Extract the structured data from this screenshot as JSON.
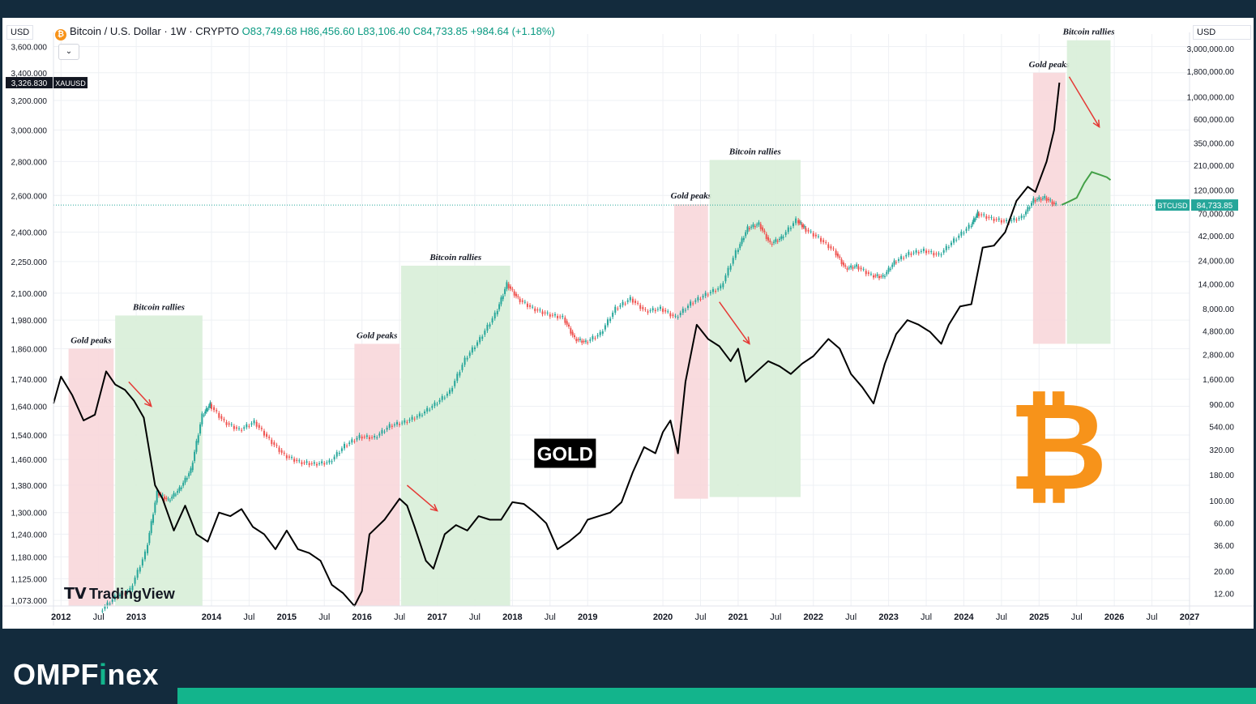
{
  "header": {
    "title": "Bitcoin / U.S. Dollar · 1W · CRYPTO",
    "open": "O83,749.68",
    "high": "H86,456.60",
    "low": "L83,106.40",
    "close": "C84,733.85",
    "change": "+984.64 (+1.18%)"
  },
  "left_currency": "USD",
  "right_currency": "USD",
  "dropdown_icon": "chevron-down-icon",
  "watermark": "TradingView",
  "brand": {
    "part1": "OMPF",
    "part2": "i",
    "part3": "nex"
  },
  "colors": {
    "background": "#ffffff",
    "gold_line": "#000000",
    "btc_up": "#26a69a",
    "btc_down": "#ef5350",
    "projection": "#43a047",
    "peak_zone": "#f8d7da",
    "rally_zone": "#d8eed8",
    "arrow": "#e53935",
    "btc_logo": "#f7931a",
    "brand_accent": "#13b48c",
    "dark_bg": "#132b3d"
  },
  "chart_data": {
    "type": "line",
    "title": "Bitcoin / U.S. Dollar · 1W · CRYPTO",
    "xlabel": "",
    "ylabel_left": "USD",
    "ylabel_right": "USD",
    "x_ticks": [
      "2012",
      "Jul",
      "2013",
      "2014",
      "Jul",
      "2015",
      "Jul",
      "2016",
      "Jul",
      "2017",
      "Jul",
      "2018",
      "Jul",
      "2019",
      "2020",
      "Jul",
      "2021",
      "Jul",
      "2022",
      "Jul",
      "2023",
      "Jul",
      "2024",
      "Jul",
      "2025",
      "Jul",
      "2026",
      "Jul",
      "2027"
    ],
    "x_range": [
      2011.9,
      2027.0
    ],
    "left_axis": {
      "ticks": [
        "3,600.000",
        "3,400.000",
        "3,200.000",
        "3,000.000",
        "2,800.000",
        "2,600.000",
        "2,400.000",
        "2,250.000",
        "2,100.000",
        "1,980.000",
        "1,860.000",
        "1,740.000",
        "1,640.000",
        "1,540.000",
        "1,460.000",
        "1,380.000",
        "1,300.000",
        "1,240.000",
        "1,180.000",
        "1,125.000",
        "1,073.000"
      ],
      "scale": "log"
    },
    "right_axis": {
      "ticks": [
        "3,000,000.00",
        "1,800,000.00",
        "1,000,000.00",
        "600,000.00",
        "350,000.00",
        "210,000.00",
        "120,000.00",
        "70,000.00",
        "42,000.00",
        "24,000.00",
        "14,000.00",
        "8,000.00",
        "4,800.00",
        "2,800.00",
        "1,600.00",
        "900.00",
        "540.00",
        "320.00",
        "180.00",
        "100.00",
        "60.00",
        "36.00",
        "20.00",
        "12.00"
      ],
      "scale": "log"
    },
    "last_values": {
      "gold_symbol": "XAUUSD",
      "gold_value": "3,326.830",
      "btc_symbol": "BTCUSD",
      "btc_value": "84,733.85"
    },
    "series": [
      {
        "name": "XAUUSD",
        "axis": "left",
        "x": [
          2011.9,
          2012.0,
          2012.15,
          2012.3,
          2012.45,
          2012.6,
          2012.72,
          2012.85,
          2012.97,
          2013.1,
          2013.25,
          2013.35,
          2013.5,
          2013.65,
          2013.8,
          2013.95,
          2014.1,
          2014.25,
          2014.4,
          2014.55,
          2014.7,
          2014.85,
          2015.0,
          2015.15,
          2015.3,
          2015.45,
          2015.6,
          2015.75,
          2015.9,
          2016.0,
          2016.1,
          2016.3,
          2016.5,
          2016.6,
          2016.7,
          2016.85,
          2016.95,
          2017.1,
          2017.25,
          2017.4,
          2017.55,
          2017.7,
          2017.85,
          2018.0,
          2018.15,
          2018.3,
          2018.45,
          2018.6,
          2018.75,
          2018.9,
          2019.0,
          2019.15,
          2019.3,
          2019.45,
          2019.6,
          2019.75,
          2019.9,
          2020.0,
          2020.1,
          2020.2,
          2020.3,
          2020.45,
          2020.6,
          2020.75,
          2020.9,
          2021.0,
          2021.1,
          2021.25,
          2021.4,
          2021.55,
          2021.7,
          2021.85,
          2022.0,
          2022.2,
          2022.35,
          2022.5,
          2022.65,
          2022.8,
          2022.95,
          2023.1,
          2023.25,
          2023.4,
          2023.55,
          2023.7,
          2023.8,
          2023.95,
          2024.1,
          2024.25,
          2024.4,
          2024.55,
          2024.7,
          2024.85,
          2024.95,
          2025.1,
          2025.2,
          2025.27
        ],
        "values": [
          1650,
          1750,
          1680,
          1590,
          1610,
          1770,
          1720,
          1700,
          1660,
          1600,
          1380,
          1340,
          1250,
          1320,
          1240,
          1220,
          1300,
          1290,
          1310,
          1260,
          1240,
          1200,
          1250,
          1200,
          1190,
          1170,
          1110,
          1090,
          1060,
          1095,
          1240,
          1280,
          1340,
          1320,
          1260,
          1170,
          1150,
          1240,
          1265,
          1250,
          1290,
          1280,
          1280,
          1330,
          1325,
          1300,
          1270,
          1200,
          1220,
          1245,
          1280,
          1290,
          1300,
          1330,
          1420,
          1500,
          1480,
          1550,
          1590,
          1480,
          1730,
          1960,
          1900,
          1870,
          1810,
          1860,
          1730,
          1770,
          1810,
          1790,
          1760,
          1800,
          1830,
          1900,
          1860,
          1760,
          1710,
          1650,
          1800,
          1920,
          1980,
          1960,
          1930,
          1880,
          1960,
          2040,
          2050,
          2320,
          2330,
          2400,
          2570,
          2650,
          2620,
          2800,
          3000,
          3327
        ]
      },
      {
        "name": "BTCUSD",
        "axis": "right",
        "x": [
          2012.55,
          2012.75,
          2012.95,
          2013.15,
          2013.3,
          2013.45,
          2013.6,
          2013.75,
          2013.9,
          2014.0,
          2014.2,
          2014.4,
          2014.6,
          2014.8,
          2015.0,
          2015.2,
          2015.4,
          2015.6,
          2015.8,
          2016.0,
          2016.2,
          2016.4,
          2016.6,
          2016.8,
          2017.0,
          2017.2,
          2017.4,
          2017.6,
          2017.8,
          2017.95,
          2018.1,
          2018.3,
          2018.5,
          2018.7,
          2018.85,
          2019.0,
          2019.2,
          2019.4,
          2019.6,
          2019.8,
          2020.0,
          2020.2,
          2020.4,
          2020.6,
          2020.8,
          2021.0,
          2021.15,
          2021.3,
          2021.45,
          2021.6,
          2021.8,
          2021.9,
          2022.1,
          2022.3,
          2022.45,
          2022.6,
          2022.8,
          2022.95,
          2023.1,
          2023.3,
          2023.5,
          2023.7,
          2023.9,
          2024.1,
          2024.2,
          2024.4,
          2024.6,
          2024.8,
          2024.95,
          2025.1,
          2025.25
        ],
        "values": [
          8,
          11,
          13,
          30,
          120,
          100,
          130,
          200,
          700,
          900,
          600,
          500,
          600,
          400,
          280,
          240,
          230,
          240,
          350,
          430,
          420,
          550,
          600,
          700,
          900,
          1200,
          2500,
          4000,
          7000,
          14000,
          10000,
          8000,
          7000,
          6500,
          4000,
          3700,
          4500,
          8000,
          10000,
          7500,
          8000,
          6500,
          9000,
          11000,
          13000,
          29000,
          50000,
          55000,
          35000,
          40000,
          60000,
          50000,
          40000,
          30000,
          20000,
          21000,
          17000,
          16500,
          23000,
          28000,
          30000,
          27000,
          38000,
          52000,
          70000,
          62000,
          58000,
          64000,
          95000,
          100000,
          84733.85
        ]
      },
      {
        "name": "projection",
        "axis": "right",
        "x": [
          2025.3,
          2025.4,
          2025.5,
          2025.6,
          2025.7,
          2025.8,
          2025.9,
          2025.95
        ],
        "values": [
          85000,
          92000,
          100000,
          140000,
          180000,
          170000,
          160000,
          150000
        ]
      }
    ],
    "zones": [
      {
        "label": "Gold peaks",
        "kind": "peak",
        "x0": 2012.1,
        "x1": 2012.7,
        "y_top": 1860,
        "y_bottom": 1060
      },
      {
        "label": "Bitcoin rallies",
        "kind": "rally",
        "x0": 2012.72,
        "x1": 2013.88,
        "y_top": 2000,
        "y_bottom": 1060
      },
      {
        "label": "Gold peaks",
        "kind": "peak",
        "x0": 2015.9,
        "x1": 2016.5,
        "y_top": 1880,
        "y_bottom": 1060
      },
      {
        "label": "Bitcoin rallies",
        "kind": "rally",
        "x0": 2016.52,
        "x1": 2017.97,
        "y_top": 2230,
        "y_bottom": 1060
      },
      {
        "label": "Gold peaks",
        "kind": "peak",
        "x0": 2020.15,
        "x1": 2020.6,
        "y_top": 2550,
        "y_bottom": 1340
      },
      {
        "label": "Bitcoin rallies",
        "kind": "rally",
        "x0": 2020.62,
        "x1": 2021.83,
        "y_top": 2810,
        "y_bottom": 1345
      },
      {
        "label": "Gold peaks",
        "kind": "peak",
        "x0": 2024.92,
        "x1": 2025.35,
        "y_top": 3400,
        "y_bottom": 1880
      },
      {
        "label": "Bitcoin rallies",
        "kind": "rally",
        "x0": 2025.37,
        "x1": 2025.95,
        "y_top": 3650,
        "y_bottom": 1880
      }
    ],
    "annotations": [
      {
        "text": "GOLD",
        "x": 2018.7,
        "y": 1480
      },
      {
        "text": "Gold peaks",
        "x": 2012.4,
        "y": 1870
      },
      {
        "text": "Bitcoin rallies",
        "x": 2013.3,
        "y": 2010
      }
    ],
    "legend": "none",
    "grid": true
  }
}
